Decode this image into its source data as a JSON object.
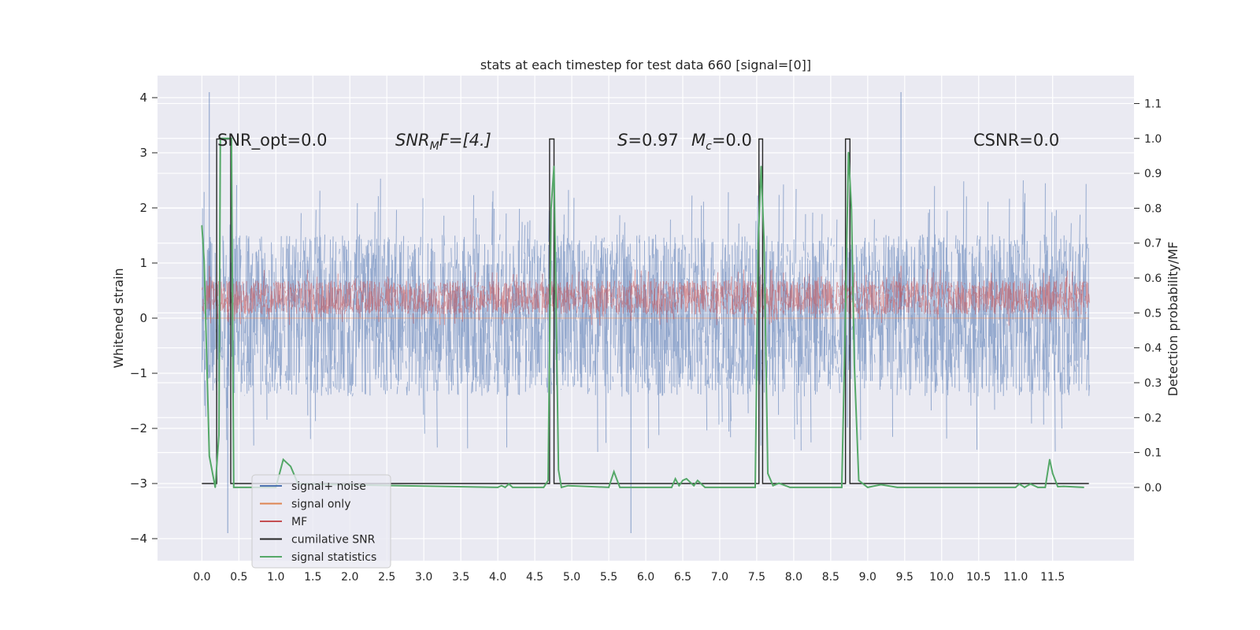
{
  "chart_data": {
    "type": "line",
    "title": "stats at each timestep for test data 660 [signal=[0]]",
    "ylabel": "Whitened strain",
    "y2label": "Detection probability/MF",
    "xlim": [
      -0.6,
      12.6
    ],
    "ylim": [
      -4.4,
      4.4
    ],
    "y2lim": [
      -0.21,
      1.18
    ],
    "x_ticks": [
      "0.0",
      "0.5",
      "1.0",
      "1.5",
      "2.0",
      "2.5",
      "3.0",
      "3.5",
      "4.0",
      "4.5",
      "5.0",
      "5.5",
      "6.0",
      "6.5",
      "7.0",
      "7.5",
      "8.0",
      "8.5",
      "9.0",
      "9.5",
      "10.0",
      "10.5",
      "11.0",
      "11.5"
    ],
    "y_ticks": [
      4,
      3,
      2,
      1,
      0,
      -1,
      -2,
      -3,
      -4
    ],
    "y_tick_labels": [
      "4",
      "3",
      "2",
      "1",
      "0",
      "−1",
      "−2",
      "−3",
      "−4"
    ],
    "y2_ticks": [
      1.1,
      1.0,
      0.9,
      0.8,
      0.7,
      0.6,
      0.5,
      0.4,
      0.3,
      0.2,
      0.1,
      0.0
    ],
    "y2_tick_labels": [
      "1.1",
      "1.0",
      "0.9",
      "0.8",
      "0.7",
      "0.6",
      "0.5",
      "0.4",
      "0.3",
      "0.2",
      "0.1",
      "0.0"
    ],
    "grid": true,
    "legend_position": "lower-left",
    "annotations": {
      "snr_opt": "SNR_opt=0.0",
      "snr_mf_name": "SNR",
      "snr_mf_sub": "M",
      "snr_mf_rest": "F=[4.]",
      "s_name": "S",
      "s_value": "=0.97",
      "mc_name": "M",
      "mc_sub": "c",
      "mc_value": "=0.0",
      "csnr": "CSNR=0.0"
    },
    "series": [
      {
        "name": "signal+ noise",
        "color": "#4c72b0",
        "kind": "noise-band",
        "x_range": [
          0.0,
          11.99
        ],
        "typical_range": [
          -1.5,
          1.6
        ],
        "spike_extremes": [
          -3.9,
          4.1
        ]
      },
      {
        "name": "signal only",
        "color": "#dd8452",
        "kind": "flat",
        "value": 0.0
      },
      {
        "name": "MF",
        "color": "#c44e52",
        "kind": "noise-band",
        "x_range": [
          0.0,
          11.99
        ],
        "typical_range": [
          0.05,
          0.7
        ],
        "spike_extremes": [
          -0.05,
          0.95
        ]
      },
      {
        "name": "cumilative SNR",
        "color": "#262626",
        "kind": "step",
        "pulses": [
          [
            0.2,
            0.39
          ],
          [
            4.7,
            4.76
          ],
          [
            7.53,
            7.58
          ],
          [
            8.7,
            8.76
          ]
        ],
        "low": -3.0,
        "high": 3.25
      },
      {
        "name": "signal statistics",
        "color": "#55a868",
        "kind": "line",
        "x": [
          0.0,
          0.03,
          0.1,
          0.18,
          0.23,
          0.25,
          0.4,
          0.43,
          0.6,
          1.0,
          1.1,
          1.2,
          1.3,
          4.0,
          4.05,
          4.1,
          4.15,
          4.2,
          4.62,
          4.68,
          4.72,
          4.76,
          4.82,
          4.86,
          4.95,
          5.5,
          5.57,
          5.65,
          6.35,
          6.4,
          6.45,
          6.5,
          6.55,
          6.6,
          6.65,
          6.7,
          6.8,
          7.48,
          7.52,
          7.56,
          7.6,
          7.65,
          7.72,
          7.8,
          7.95,
          8.65,
          8.7,
          8.74,
          8.78,
          8.82,
          8.88,
          9.0,
          9.18,
          9.4,
          11.0,
          11.05,
          11.12,
          11.2,
          11.3,
          11.4,
          11.46,
          11.5,
          11.57,
          11.65,
          11.92
        ],
        "y": [
          0.75,
          0.65,
          0.09,
          0.0,
          0.15,
          1.0,
          1.0,
          0.0,
          0.0,
          0.0,
          0.08,
          0.06,
          0.01,
          0.0,
          0.005,
          0.0,
          0.01,
          0.0,
          0.0,
          0.02,
          0.8,
          0.92,
          0.05,
          0.0,
          0.005,
          0.0,
          0.045,
          0.0,
          0.0,
          0.025,
          0.005,
          0.02,
          0.025,
          0.015,
          0.005,
          0.02,
          0.0,
          0.0,
          0.7,
          0.92,
          0.7,
          0.04,
          0.005,
          0.012,
          0.0,
          0.0,
          0.5,
          0.96,
          0.8,
          0.35,
          0.02,
          0.0,
          0.008,
          0.0,
          0.0,
          0.01,
          0.0,
          0.01,
          0.0,
          0.0,
          0.08,
          0.04,
          0.002,
          0.003,
          0.0
        ]
      }
    ]
  }
}
